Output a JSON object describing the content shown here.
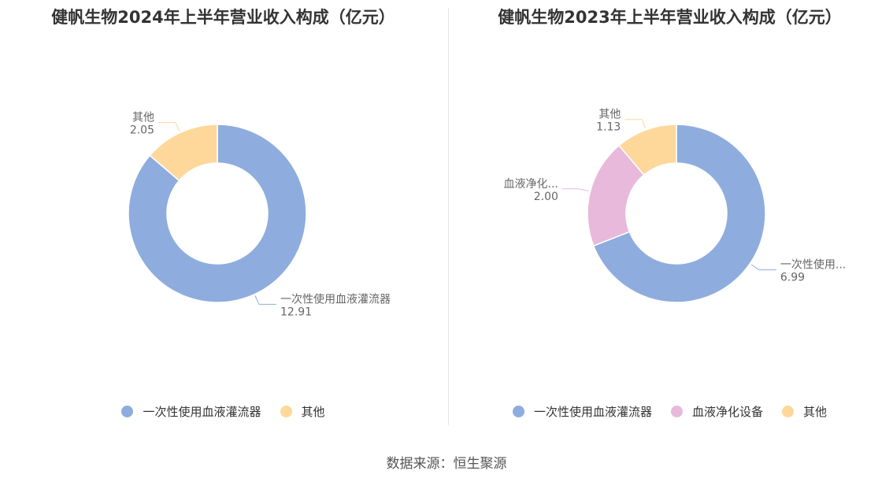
{
  "footer": {
    "source": "数据来源：恒生聚源"
  },
  "chart_data": [
    {
      "type": "pie",
      "title": "健帆生物2024年上半年营业收入构成（亿元）",
      "categories": [
        "一次性使用血液灌流器",
        "其他"
      ],
      "values": [
        12.91,
        2.05
      ],
      "value_labels": [
        "12.91",
        "2.05"
      ],
      "slice_labels": [
        "一次性使用血液灌流器",
        "其他"
      ],
      "colors": [
        "#8eadde",
        "#fdd89a"
      ],
      "legend": [
        "一次性使用血液灌流器",
        "其他"
      ],
      "legend_position": "bottom"
    },
    {
      "type": "pie",
      "title": "健帆生物2023年上半年营业收入构成（亿元）",
      "categories": [
        "一次性使用血液灌流器",
        "血液净化设备",
        "其他"
      ],
      "values": [
        6.99,
        2.0,
        1.13
      ],
      "value_labels": [
        "6.99",
        "2.00",
        "1.13"
      ],
      "slice_labels": [
        "一次性使用...",
        "血液净化...",
        "其他"
      ],
      "colors": [
        "#8eadde",
        "#e8b9da",
        "#fdd89a"
      ],
      "legend": [
        "一次性使用血液灌流器",
        "血液净化设备",
        "其他"
      ],
      "legend_position": "bottom"
    }
  ]
}
